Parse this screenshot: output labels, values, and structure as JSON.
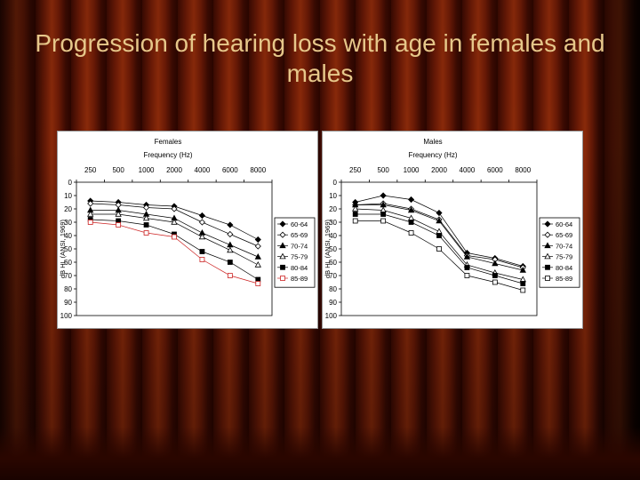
{
  "slide": {
    "title": "Progression of hearing loss with age in females and males"
  },
  "chart_data": [
    {
      "type": "line",
      "title": "Females",
      "subtitle": "Frequency (Hz)",
      "xlabel": "Frequency (Hz)",
      "ylabel": "dB HL (ANSI, 1969)",
      "categories": [
        "250",
        "500",
        "1000",
        "2000",
        "4000",
        "6000",
        "8000"
      ],
      "ylim": [
        0,
        100
      ],
      "y_ticks": [
        "0",
        "10",
        "20",
        "30",
        "40",
        "50",
        "60",
        "70",
        "80",
        "90",
        "100"
      ],
      "y_inverted": true,
      "grid": false,
      "legend_position": "right",
      "series": [
        {
          "name": "60-64",
          "marker": "diamond-filled",
          "color": "#000000",
          "values": [
            14,
            15,
            17,
            18,
            25,
            32,
            43
          ]
        },
        {
          "name": "65-69",
          "marker": "diamond-open",
          "color": "#000000",
          "values": [
            16,
            17,
            19,
            20,
            30,
            39,
            48
          ]
        },
        {
          "name": "70-74",
          "marker": "triangle-filled",
          "color": "#000000",
          "values": [
            21,
            21,
            24,
            27,
            38,
            47,
            56
          ]
        },
        {
          "name": "75-79",
          "marker": "triangle-open",
          "color": "#000000",
          "values": [
            24,
            24,
            27,
            30,
            41,
            51,
            62
          ]
        },
        {
          "name": "80-84",
          "marker": "square-filled",
          "color": "#000000",
          "values": [
            28,
            29,
            32,
            39,
            52,
            60,
            73
          ]
        },
        {
          "name": "85-89",
          "marker": "square-open",
          "color": "#cc2222",
          "values": [
            30,
            32,
            38,
            41,
            58,
            70,
            76
          ]
        }
      ]
    },
    {
      "type": "line",
      "title": "Males",
      "subtitle": "Frequency (Hz)",
      "xlabel": "Frequency (Hz)",
      "ylabel": "dB HL (ANSI, 1969)",
      "categories": [
        "250",
        "500",
        "1000",
        "2000",
        "4000",
        "6000",
        "8000"
      ],
      "ylim": [
        0,
        100
      ],
      "y_ticks": [
        "0",
        "10",
        "20",
        "30",
        "40",
        "50",
        "60",
        "70",
        "80",
        "90",
        "100"
      ],
      "y_inverted": true,
      "grid": false,
      "legend_position": "right",
      "series": [
        {
          "name": "60-64",
          "marker": "diamond-filled",
          "color": "#000000",
          "values": [
            15,
            10,
            13,
            23,
            53,
            57,
            63
          ]
        },
        {
          "name": "65-69",
          "marker": "diamond-open",
          "color": "#000000",
          "values": [
            17,
            16,
            20,
            28,
            55,
            58,
            64
          ]
        },
        {
          "name": "70-74",
          "marker": "triangle-filled",
          "color": "#000000",
          "values": [
            17,
            17,
            21,
            29,
            56,
            61,
            66
          ]
        },
        {
          "name": "75-79",
          "marker": "triangle-open",
          "color": "#000000",
          "values": [
            20,
            21,
            27,
            37,
            62,
            68,
            73
          ]
        },
        {
          "name": "80-84",
          "marker": "square-filled",
          "color": "#000000",
          "values": [
            24,
            24,
            30,
            40,
            64,
            70,
            76
          ]
        },
        {
          "name": "85-89",
          "marker": "square-open",
          "color": "#000000",
          "values": [
            29,
            29,
            38,
            50,
            70,
            75,
            81
          ]
        }
      ]
    }
  ]
}
